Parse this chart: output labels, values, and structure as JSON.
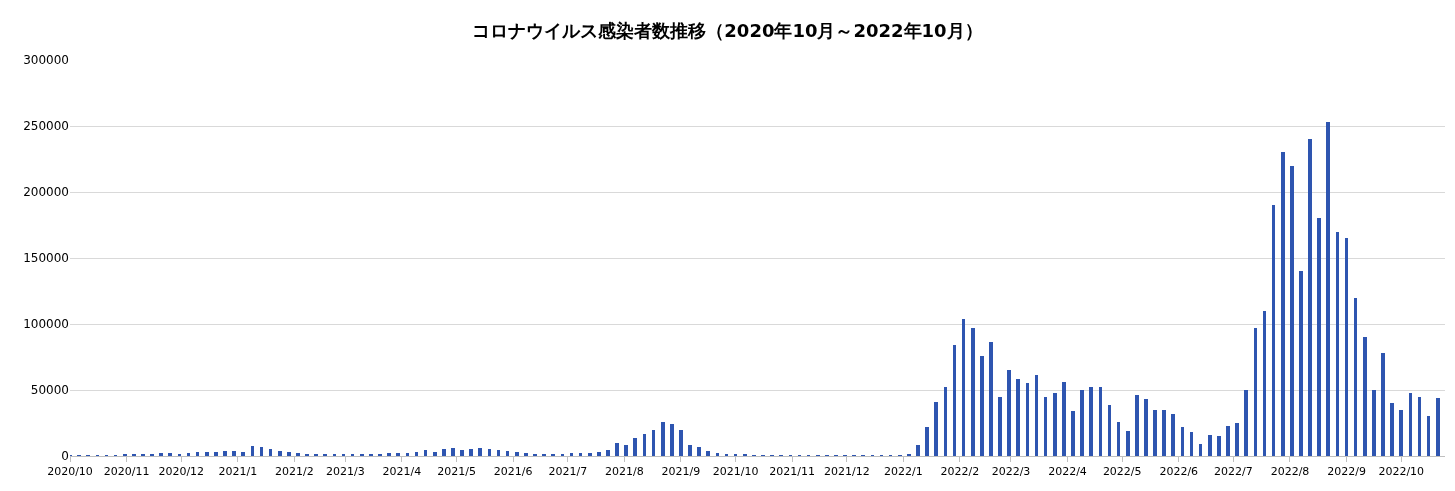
{
  "chart_data": {
    "type": "bar",
    "title": "コロナウイルス感染者数推移（2020年10月～2022年10月）",
    "x": [
      "2020-10-01",
      "2020-10-06",
      "2020-10-11",
      "2020-10-16",
      "2020-10-21",
      "2020-10-26",
      "2020-10-31",
      "2020-11-05",
      "2020-11-10",
      "2020-11-15",
      "2020-11-20",
      "2020-11-25",
      "2020-11-30",
      "2020-12-05",
      "2020-12-10",
      "2020-12-15",
      "2020-12-20",
      "2020-12-25",
      "2020-12-30",
      "2021-01-04",
      "2021-01-09",
      "2021-01-14",
      "2021-01-19",
      "2021-01-24",
      "2021-01-29",
      "2021-02-03",
      "2021-02-08",
      "2021-02-13",
      "2021-02-18",
      "2021-02-23",
      "2021-02-28",
      "2021-03-05",
      "2021-03-10",
      "2021-03-15",
      "2021-03-20",
      "2021-03-25",
      "2021-03-30",
      "2021-04-04",
      "2021-04-09",
      "2021-04-14",
      "2021-04-19",
      "2021-04-24",
      "2021-04-29",
      "2021-05-04",
      "2021-05-09",
      "2021-05-14",
      "2021-05-19",
      "2021-05-24",
      "2021-05-29",
      "2021-06-03",
      "2021-06-08",
      "2021-06-13",
      "2021-06-18",
      "2021-06-23",
      "2021-06-28",
      "2021-07-03",
      "2021-07-08",
      "2021-07-13",
      "2021-07-18",
      "2021-07-23",
      "2021-07-28",
      "2021-08-02",
      "2021-08-07",
      "2021-08-12",
      "2021-08-17",
      "2021-08-22",
      "2021-08-27",
      "2021-09-01",
      "2021-09-06",
      "2021-09-11",
      "2021-09-16",
      "2021-09-21",
      "2021-09-26",
      "2021-10-01",
      "2021-10-06",
      "2021-10-11",
      "2021-10-16",
      "2021-10-21",
      "2021-10-26",
      "2021-10-31",
      "2021-11-05",
      "2021-11-10",
      "2021-11-15",
      "2021-11-20",
      "2021-11-25",
      "2021-11-30",
      "2021-12-05",
      "2021-12-10",
      "2021-12-15",
      "2021-12-20",
      "2021-12-25",
      "2021-12-30",
      "2022-01-04",
      "2022-01-09",
      "2022-01-14",
      "2022-01-19",
      "2022-01-24",
      "2022-01-29",
      "2022-02-03",
      "2022-02-08",
      "2022-02-13",
      "2022-02-18",
      "2022-02-23",
      "2022-02-28",
      "2022-03-05",
      "2022-03-10",
      "2022-03-15",
      "2022-03-20",
      "2022-03-25",
      "2022-03-30",
      "2022-04-04",
      "2022-04-09",
      "2022-04-14",
      "2022-04-19",
      "2022-04-24",
      "2022-04-29",
      "2022-05-04",
      "2022-05-09",
      "2022-05-14",
      "2022-05-19",
      "2022-05-24",
      "2022-05-29",
      "2022-06-03",
      "2022-06-08",
      "2022-06-13",
      "2022-06-18",
      "2022-06-23",
      "2022-06-28",
      "2022-07-03",
      "2022-07-08",
      "2022-07-13",
      "2022-07-18",
      "2022-07-23",
      "2022-07-28",
      "2022-08-02",
      "2022-08-07",
      "2022-08-12",
      "2022-08-17",
      "2022-08-22",
      "2022-08-27",
      "2022-09-01",
      "2022-09-06",
      "2022-09-11",
      "2022-09-16",
      "2022-09-21",
      "2022-09-26",
      "2022-10-01",
      "2022-10-06",
      "2022-10-11",
      "2022-10-16",
      "2022-10-21"
    ],
    "values": [
      500,
      400,
      600,
      700,
      600,
      500,
      900,
      1000,
      1300,
      1600,
      2400,
      1900,
      1400,
      2400,
      2800,
      3000,
      2800,
      3700,
      3800,
      3300,
      7800,
      6600,
      5300,
      3900,
      3300,
      2300,
      1500,
      1400,
      1300,
      1000,
      1000,
      1200,
      1300,
      1000,
      1500,
      2000,
      2100,
      2400,
      3400,
      4300,
      3000,
      5100,
      5800,
      4300,
      5600,
      6200,
      5600,
      4400,
      3600,
      2800,
      2200,
      1700,
      1600,
      1800,
      1600,
      1900,
      2200,
      2300,
      3000,
      4200,
      9500,
      8400,
      14000,
      16800,
      19900,
      25400,
      24000,
      20000,
      8200,
      7200,
      4000,
      1900,
      1500,
      1600,
      900,
      500,
      400,
      300,
      300,
      200,
      200,
      200,
      200,
      100,
      100,
      100,
      100,
      200,
      200,
      200,
      300,
      500,
      1200,
      8400,
      22000,
      41000,
      52000,
      84000,
      104000,
      97000,
      76000,
      86000,
      45000,
      65000,
      58000,
      55000,
      61000,
      45000,
      48000,
      56000,
      34000,
      50000,
      52000,
      52000,
      39000,
      26000,
      19000,
      46000,
      43000,
      35000,
      35000,
      32000,
      22000,
      18000,
      9000,
      16000,
      15000,
      23000,
      25000,
      50000,
      97000,
      110000,
      190000,
      230000,
      220000,
      140000,
      240000,
      180000,
      253000,
      170000,
      165000,
      120000,
      90000,
      50000,
      78000,
      40000,
      35000,
      48000,
      45000,
      30000,
      44000
    ],
    "color": "#2e55b0",
    "xlim": [
      "2020-10-01",
      "2022-10-25"
    ],
    "xticks": [
      {
        "value": "2020-10-01",
        "label": "2020/10"
      },
      {
        "value": "2020-11-01",
        "label": "2020/11"
      },
      {
        "value": "2020-12-01",
        "label": "2020/12"
      },
      {
        "value": "2021-01-01",
        "label": "2021/1"
      },
      {
        "value": "2021-02-01",
        "label": "2021/2"
      },
      {
        "value": "2021-03-01",
        "label": "2021/3"
      },
      {
        "value": "2021-04-01",
        "label": "2021/4"
      },
      {
        "value": "2021-05-01",
        "label": "2021/5"
      },
      {
        "value": "2021-06-01",
        "label": "2021/6"
      },
      {
        "value": "2021-07-01",
        "label": "2021/7"
      },
      {
        "value": "2021-08-01",
        "label": "2021/8"
      },
      {
        "value": "2021-09-01",
        "label": "2021/9"
      },
      {
        "value": "2021-10-01",
        "label": "2021/10"
      },
      {
        "value": "2021-11-01",
        "label": "2021/11"
      },
      {
        "value": "2021-12-01",
        "label": "2021/12"
      },
      {
        "value": "2022-01-01",
        "label": "2022/1"
      },
      {
        "value": "2022-02-01",
        "label": "2022/2"
      },
      {
        "value": "2022-03-01",
        "label": "2022/3"
      },
      {
        "value": "2022-04-01",
        "label": "2022/4"
      },
      {
        "value": "2022-05-01",
        "label": "2022/5"
      },
      {
        "value": "2022-06-01",
        "label": "2022/6"
      },
      {
        "value": "2022-07-01",
        "label": "2022/7"
      },
      {
        "value": "2022-08-01",
        "label": "2022/8"
      },
      {
        "value": "2022-09-01",
        "label": "2022/9"
      },
      {
        "value": "2022-10-01",
        "label": "2022/10"
      }
    ],
    "ylim": [
      0,
      300000
    ],
    "yticks": [
      0,
      50000,
      100000,
      150000,
      200000,
      250000,
      300000
    ],
    "grid": "y"
  }
}
